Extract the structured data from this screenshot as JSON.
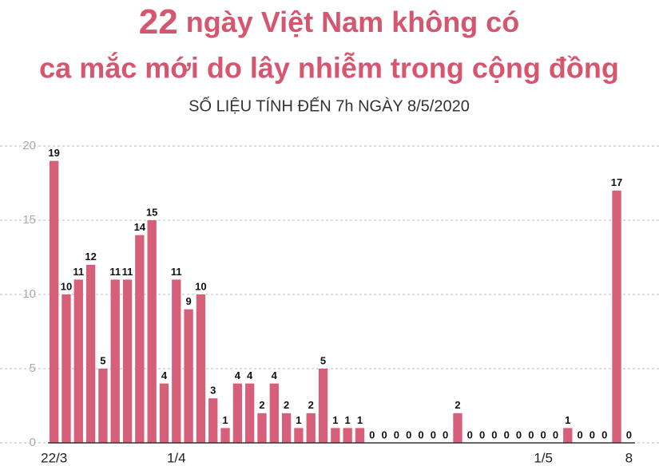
{
  "chart_data": {
    "type": "bar",
    "title": [
      "22",
      "ngày Việt Nam không có",
      "ca mắc mới do lây nhiễm trong cộng đồng"
    ],
    "subtitle": "SỐ LIỆU TÍNH ĐẾN 7h NGÀY 8/5/2020",
    "categories": [
      "22/3",
      null,
      null,
      null,
      null,
      null,
      null,
      null,
      null,
      null,
      "1/4",
      null,
      null,
      null,
      null,
      null,
      null,
      null,
      null,
      null,
      null,
      null,
      null,
      null,
      null,
      null,
      null,
      null,
      null,
      null,
      null,
      null,
      null,
      null,
      null,
      null,
      null,
      null,
      null,
      null,
      "1/5",
      null,
      null,
      null,
      null,
      null,
      null,
      "8"
    ],
    "values": [
      19,
      10,
      11,
      12,
      5,
      11,
      11,
      14,
      15,
      4,
      11,
      9,
      10,
      3,
      1,
      4,
      4,
      2,
      4,
      2,
      1,
      2,
      5,
      1,
      1,
      1,
      0,
      0,
      0,
      0,
      0,
      0,
      0,
      2,
      0,
      0,
      0,
      0,
      0,
      0,
      0,
      0,
      1,
      0,
      0,
      0,
      17,
      0
    ],
    "color": "#d6607a",
    "ylim": [
      0,
      20
    ],
    "yticks": [
      0,
      5,
      10,
      15,
      20
    ],
    "grid": true
  }
}
